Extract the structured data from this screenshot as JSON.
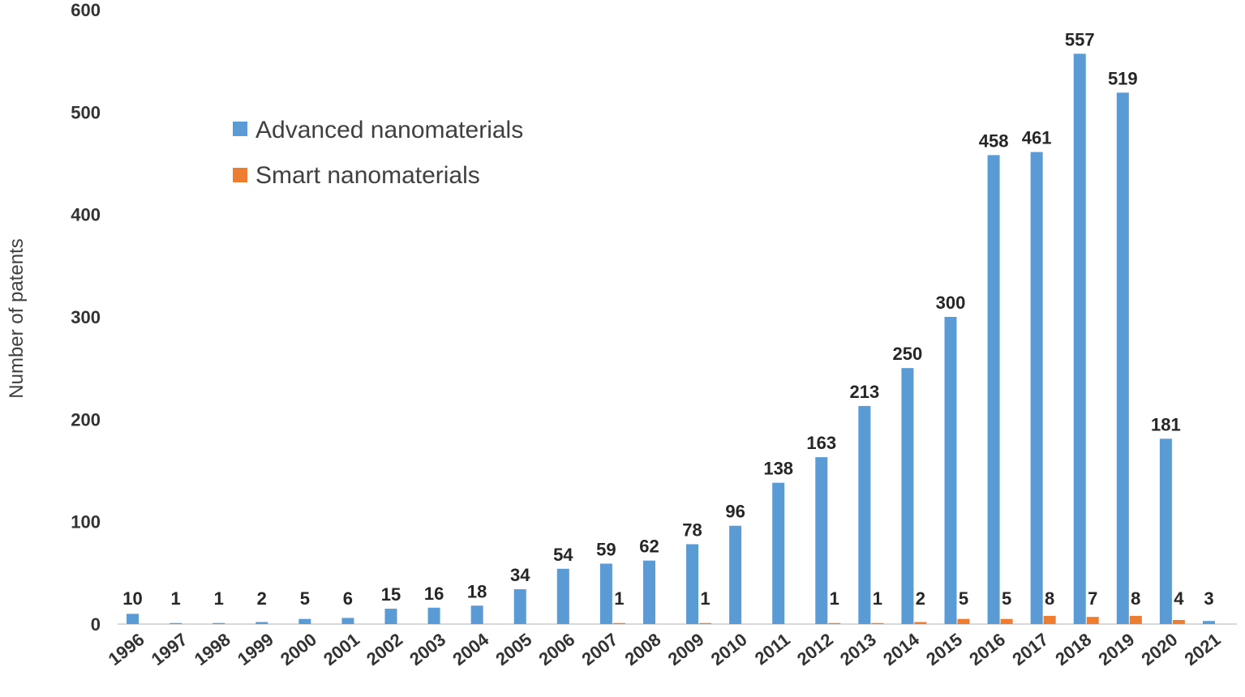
{
  "chart_data": {
    "type": "bar",
    "title": "",
    "xlabel": "",
    "ylabel": "Number of patents",
    "ylim": [
      0,
      600
    ],
    "yticks": [
      0,
      100,
      200,
      300,
      400,
      500,
      600
    ],
    "grid": false,
    "legend_position": "upper-left",
    "categories": [
      "1996",
      "1997",
      "1998",
      "1999",
      "2000",
      "2001",
      "2002",
      "2003",
      "2004",
      "2005",
      "2006",
      "2007",
      "2008",
      "2009",
      "2010",
      "2011",
      "2012",
      "2013",
      "2014",
      "2015",
      "2016",
      "2017",
      "2018",
      "2019",
      "2020",
      "2021"
    ],
    "series": [
      {
        "name": "Advanced nanomaterials",
        "color": "#5B9BD5",
        "values": [
          10,
          1,
          1,
          2,
          5,
          6,
          15,
          16,
          18,
          34,
          54,
          59,
          62,
          78,
          96,
          138,
          163,
          213,
          250,
          300,
          458,
          461,
          557,
          519,
          181,
          3
        ],
        "labels": [
          "10",
          "1",
          "1",
          "2",
          "5",
          "6",
          "15",
          "16",
          "18",
          "34",
          "54",
          "59",
          "62",
          "78",
          "96",
          "138",
          "163",
          "213",
          "250",
          "300",
          "458",
          "461",
          "557",
          "519",
          "181",
          "3"
        ]
      },
      {
        "name": "Smart nanomaterials",
        "color": "#ED7D31",
        "values": [
          0,
          0,
          0,
          0,
          0,
          0,
          0,
          0,
          0,
          0,
          0,
          1,
          0,
          1,
          0,
          0,
          1,
          1,
          2,
          5,
          5,
          8,
          7,
          8,
          4,
          0
        ],
        "labels": [
          "",
          "",
          "",
          "",
          "",
          "",
          "",
          "",
          "",
          "",
          "",
          "1",
          "",
          "1",
          "",
          "",
          "1",
          "1",
          "2",
          "5",
          "5",
          "8",
          "7",
          "8",
          "4",
          ""
        ]
      }
    ]
  }
}
